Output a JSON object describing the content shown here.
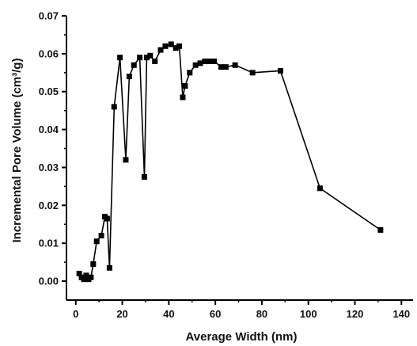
{
  "chart_data": {
    "type": "scatter",
    "title": "",
    "xlabel": "Average Width (nm)",
    "ylabel": "Incremental Pore Volume (cm³/g)",
    "xlim": [
      -4,
      145
    ],
    "ylim": [
      -0.005,
      0.07
    ],
    "x_ticks": [
      0,
      20,
      40,
      60,
      80,
      100,
      120,
      140
    ],
    "x_tick_labels": [
      "0",
      "20",
      "40",
      "60",
      "80",
      "100",
      "120",
      "140"
    ],
    "y_ticks": [
      0.0,
      0.01,
      0.02,
      0.03,
      0.04,
      0.05,
      0.06,
      0.07
    ],
    "y_tick_labels": [
      "0.00",
      "0.01",
      "0.02",
      "0.03",
      "0.04",
      "0.05",
      "0.06",
      "0.07"
    ],
    "grid": false,
    "line_style": "line-with-square-markers",
    "color": "#000000",
    "series": [
      {
        "x": [
          1.5,
          2.5,
          3.5,
          4.5,
          5.5,
          6.5,
          7.5,
          9,
          11,
          12.5,
          13.5,
          14.5,
          16.5,
          19,
          21.5,
          23,
          25,
          27.5,
          29.5,
          30.5,
          32,
          34,
          36.5,
          38.5,
          41,
          43,
          44.5,
          46,
          47,
          49,
          51.5,
          53.5,
          55.5,
          57.5,
          59.5,
          62.5,
          64.5,
          68.5,
          76,
          88,
          105,
          131
        ],
        "y": [
          0.002,
          0.001,
          0.0005,
          0.0015,
          0.0005,
          0.001,
          0.0045,
          0.0105,
          0.012,
          0.017,
          0.0165,
          0.0035,
          0.046,
          0.059,
          0.032,
          0.054,
          0.057,
          0.059,
          0.0275,
          0.059,
          0.0595,
          0.058,
          0.061,
          0.062,
          0.0625,
          0.0615,
          0.062,
          0.0485,
          0.0515,
          0.055,
          0.057,
          0.0575,
          0.058,
          0.058,
          0.058,
          0.0565,
          0.0565,
          0.057,
          0.055,
          0.0555,
          0.0245,
          0.0135
        ]
      }
    ]
  }
}
